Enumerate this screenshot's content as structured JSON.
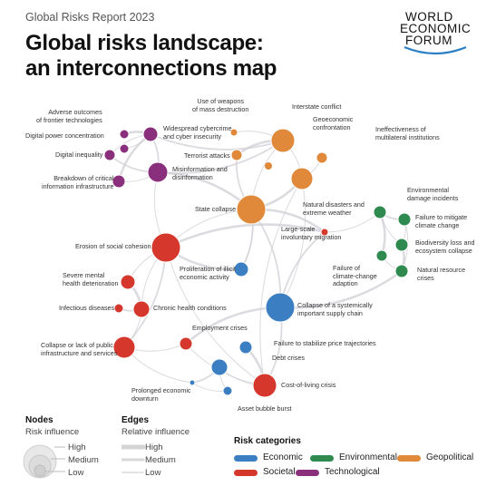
{
  "header": {
    "report": "Global Risks Report 2023",
    "title_line1": "Global risks landscape:",
    "title_line2": "an interconnections map"
  },
  "logo": {
    "line1": "WORLD",
    "line2": "ECONOMIC",
    "line3": "FORUM"
  },
  "colors": {
    "Economic": "#3b7ec2",
    "Environmental": "#2f8a4f",
    "Geopolitical": "#e0893a",
    "Societal": "#d6372c",
    "Technological": "#8a2f7c"
  },
  "nodes": [
    {
      "id": "adverse",
      "label": "Adverse outcomes\nof frontier technologies",
      "category": "Technological",
      "influence": "low"
    },
    {
      "id": "digpower",
      "label": "Digital power concentration",
      "category": "Technological",
      "influence": "low"
    },
    {
      "id": "diginequal",
      "label": "Digital inequality",
      "category": "Technological",
      "influence": "low"
    },
    {
      "id": "breakdown",
      "label": "Breakdown of critical\ninformation infrastructure",
      "category": "Technological",
      "influence": "low"
    },
    {
      "id": "cyber",
      "label": "Widespread cybercrime\nand cyber insecurity",
      "category": "Technological",
      "influence": "medium"
    },
    {
      "id": "misinfo",
      "label": "Misinformation and\ndisinformation",
      "category": "Technological",
      "influence": "medium"
    },
    {
      "id": "wmd",
      "label": "Use of weapons\nof mass destruction",
      "category": "Geopolitical",
      "influence": "low"
    },
    {
      "id": "interstate",
      "label": "Interstate conflict",
      "category": "Geopolitical",
      "influence": "medium"
    },
    {
      "id": "geoeco",
      "label": "Geoeconomic\nconfrontation",
      "category": "Geopolitical",
      "influence": "medium"
    },
    {
      "id": "ineffective",
      "label": "Ineffectiveness of\nmultilateral institutions",
      "category": "Geopolitical",
      "influence": "low"
    },
    {
      "id": "terrorist",
      "label": "Terrorist attacks",
      "category": "Geopolitical",
      "influence": "low"
    },
    {
      "id": "statecollapse",
      "label": "State collapse",
      "category": "Geopolitical",
      "influence": "high"
    },
    {
      "id": "natdis",
      "label": "Natural disasters and\nextreme weather",
      "category": "Environmental",
      "influence": "low"
    },
    {
      "id": "envdamage",
      "label": "Environmental\ndamage incidents",
      "category": "Environmental",
      "influence": "low"
    },
    {
      "id": "failmitigate",
      "label": "Failure to mitigate\nclimate change",
      "category": "Environmental",
      "influence": "low"
    },
    {
      "id": "biodiv",
      "label": "Biodiversity loss and\necosystem collapse",
      "category": "Environmental",
      "influence": "low"
    },
    {
      "id": "failadapt",
      "label": "Failure of\nclimate-change\nadaption",
      "category": "Environmental",
      "influence": "low"
    },
    {
      "id": "natres",
      "label": "Natural resource\ncrises",
      "category": "Environmental",
      "influence": "low"
    },
    {
      "id": "migration",
      "label": "Large-scale\ninvoluntary migration",
      "category": "Societal",
      "influence": "medium"
    },
    {
      "id": "erosion",
      "label": "Erosion of social cohesion",
      "category": "Societal",
      "influence": "high"
    },
    {
      "id": "mental",
      "label": "Severe mental\nhealth deterioration",
      "category": "Societal",
      "influence": "low"
    },
    {
      "id": "infectious",
      "label": "Infectious diseases",
      "category": "Societal",
      "influence": "low"
    },
    {
      "id": "chronic",
      "label": "Chronic health conditions",
      "category": "Societal",
      "influence": "low"
    },
    {
      "id": "infra",
      "label": "Collapse or lack of public\ninfrastructure and services",
      "category": "Societal",
      "influence": "medium"
    },
    {
      "id": "employment",
      "label": "Employment crises",
      "category": "Societal",
      "influence": "low"
    },
    {
      "id": "costliving",
      "label": "Cost-of-living crisis",
      "category": "Societal",
      "influence": "medium"
    },
    {
      "id": "illicit",
      "label": "Proliferation of illicit\neconomic activity",
      "category": "Economic",
      "influence": "low"
    },
    {
      "id": "supply",
      "label": "Collapse of a systemically\nimportant supply chain",
      "category": "Economic",
      "influence": "high"
    },
    {
      "id": "prices",
      "label": "Failure to stabilize price trajectories",
      "category": "Economic",
      "influence": "low"
    },
    {
      "id": "debt",
      "label": "Debt crises",
      "category": "Economic",
      "influence": "low"
    },
    {
      "id": "downturn",
      "label": "Prolonged economic\ndownturn",
      "category": "Economic",
      "influence": "low"
    },
    {
      "id": "bubble",
      "label": "Asset bubble burst",
      "category": "Economic",
      "influence": "low"
    }
  ],
  "edges": [
    [
      "adverse",
      "cyber"
    ],
    [
      "digpower",
      "cyber"
    ],
    [
      "diginequal",
      "cyber"
    ],
    [
      "diginequal",
      "misinfo"
    ],
    [
      "breakdown",
      "cyber"
    ],
    [
      "breakdown",
      "misinfo"
    ],
    [
      "cyber",
      "misinfo"
    ],
    [
      "misinfo",
      "erosion"
    ],
    [
      "misinfo",
      "statecollapse"
    ],
    [
      "cyber",
      "interstate"
    ],
    [
      "interstate",
      "geoeco"
    ],
    [
      "interstate",
      "statecollapse"
    ],
    [
      "geoeco",
      "statecollapse"
    ],
    [
      "geoeco",
      "ineffective"
    ],
    [
      "wmd",
      "interstate"
    ],
    [
      "terrorist",
      "statecollapse"
    ],
    [
      "statecollapse",
      "migration"
    ],
    [
      "statecollapse",
      "erosion"
    ],
    [
      "statecollapse",
      "supply"
    ],
    [
      "migration",
      "natdis"
    ],
    [
      "natdis",
      "failadapt"
    ],
    [
      "natdis",
      "failmitigate"
    ],
    [
      "failmitigate",
      "biodiv"
    ],
    [
      "envdamage",
      "biodiv"
    ],
    [
      "biodiv",
      "natres"
    ],
    [
      "failadapt",
      "natres"
    ],
    [
      "failmitigate",
      "natres"
    ],
    [
      "migration",
      "supply"
    ],
    [
      "natres",
      "supply"
    ],
    [
      "erosion",
      "mental"
    ],
    [
      "erosion",
      "infra"
    ],
    [
      "erosion",
      "chronic"
    ],
    [
      "mental",
      "chronic"
    ],
    [
      "infectious",
      "chronic"
    ],
    [
      "chronic",
      "infra"
    ],
    [
      "infra",
      "employment"
    ],
    [
      "employment",
      "supply"
    ],
    [
      "employment",
      "costliving"
    ],
    [
      "costliving",
      "debt"
    ],
    [
      "costliving",
      "supply"
    ],
    [
      "prices",
      "costliving"
    ],
    [
      "debt",
      "bubble"
    ],
    [
      "debt",
      "downturn"
    ],
    [
      "downturn",
      "bubble"
    ],
    [
      "illicit",
      "erosion"
    ],
    [
      "illicit",
      "statecollapse"
    ],
    [
      "geoeco",
      "supply"
    ],
    [
      "erosion",
      "costliving"
    ],
    [
      "erosion",
      "migration"
    ],
    [
      "infra",
      "downturn"
    ],
    [
      "statecollapse",
      "illicit"
    ],
    [
      "misinfo",
      "interstate"
    ],
    [
      "terrorist",
      "interstate"
    ],
    [
      "geoeco",
      "costliving"
    ]
  ],
  "legend": {
    "nodes_title": "Nodes",
    "nodes_subtitle": "Risk influence",
    "nodes_levels": [
      "High",
      "Medium",
      "Low"
    ],
    "edges_title": "Edges",
    "edges_subtitle": "Relative influence",
    "edges_levels": [
      "High",
      "Medium",
      "Low"
    ],
    "categories_title": "Risk categories",
    "categories": [
      "Economic",
      "Environmental",
      "Geopolitical",
      "Societal",
      "Technological"
    ]
  }
}
